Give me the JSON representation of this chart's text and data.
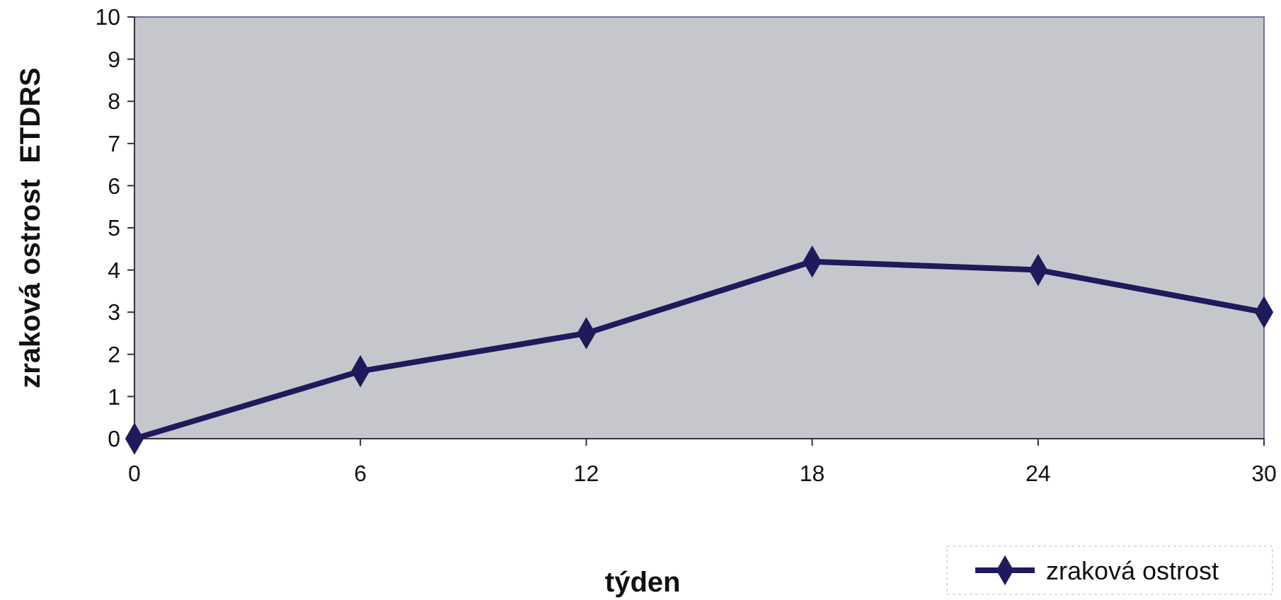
{
  "chart_data": {
    "type": "line",
    "xlabel": "týden",
    "ylabel": "zraková ostrost  ETDRS",
    "x": [
      0,
      6,
      12,
      18,
      24,
      30
    ],
    "series": [
      {
        "name": "zraková ostrost",
        "color": "#1f1a5c",
        "values": [
          0,
          1.6,
          2.5,
          4.2,
          4.0,
          3.0
        ]
      }
    ],
    "xlim": [
      0,
      30
    ],
    "xticks": [
      0,
      6,
      12,
      18,
      24,
      30
    ],
    "ylim": [
      0,
      10
    ],
    "yticks": [
      0,
      1,
      2,
      3,
      4,
      5,
      6,
      7,
      8,
      9,
      10
    ],
    "grid": false,
    "legend": "bottom right",
    "marker": "diamond",
    "line_style": "solid"
  }
}
